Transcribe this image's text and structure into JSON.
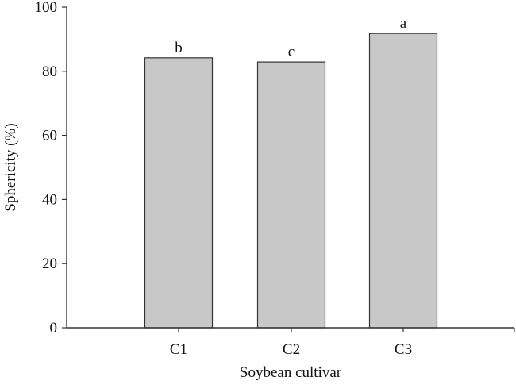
{
  "chart_data": {
    "type": "bar",
    "title": "",
    "xlabel": "Soybean cultivar",
    "ylabel": "Sphericity (%)",
    "categories": [
      "C1",
      "C2",
      "C3"
    ],
    "values": [
      84.2,
      82.9,
      91.8
    ],
    "annotations": [
      "b",
      "c",
      "a"
    ],
    "ylim": [
      0,
      100
    ],
    "yticks": [
      0,
      20,
      40,
      60,
      80,
      100
    ],
    "grid": false,
    "legend": null,
    "bar_color": "#c8c8c8",
    "bar_edge_color": "#333333"
  }
}
